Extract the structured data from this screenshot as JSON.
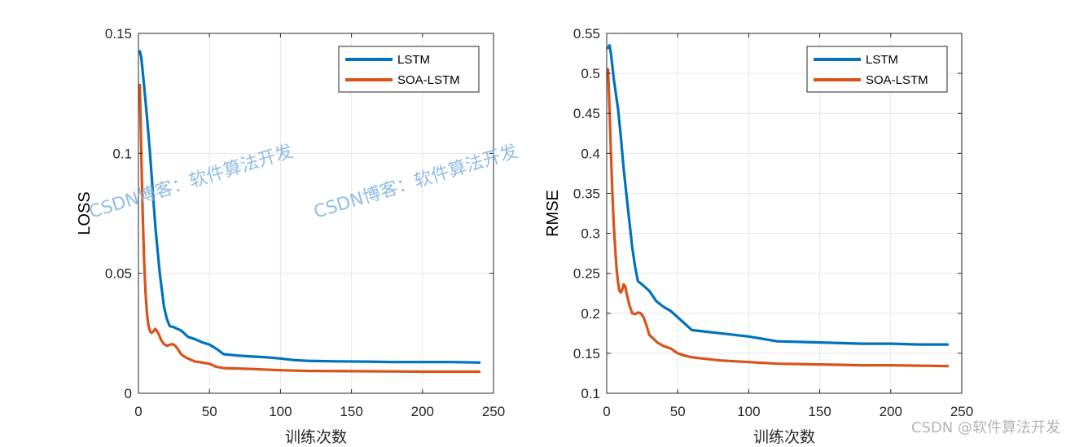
{
  "chart_data": [
    {
      "type": "line",
      "ylabel": "LOSS",
      "xlabel": "训练次数",
      "xlim": [
        0,
        250
      ],
      "ylim": [
        0,
        0.15
      ],
      "xticks": [
        0,
        50,
        100,
        150,
        200,
        250
      ],
      "xtick_labels": [
        "0",
        "50",
        "100",
        "150",
        "200",
        "250"
      ],
      "yticks": [
        0,
        0.05,
        0.1,
        0.15
      ],
      "ytick_labels": [
        "0",
        "0.05",
        "0.1",
        "0.15"
      ],
      "grid": true,
      "legend_position": "top-right",
      "series": [
        {
          "name": "LSTM",
          "color": "#0072bd",
          "x": [
            1,
            2,
            4,
            6,
            8,
            10,
            12,
            15,
            18,
            20,
            22,
            25,
            30,
            35,
            40,
            45,
            50,
            55,
            60,
            70,
            80,
            90,
            100,
            110,
            120,
            140,
            160,
            180,
            200,
            220,
            240
          ],
          "y": [
            0.1425,
            0.14,
            0.128,
            0.115,
            0.101,
            0.085,
            0.069,
            0.05,
            0.036,
            0.031,
            0.028,
            0.0275,
            0.0262,
            0.0235,
            0.0225,
            0.0212,
            0.0203,
            0.0185,
            0.0163,
            0.0157,
            0.0153,
            0.015,
            0.0145,
            0.0138,
            0.0135,
            0.0133,
            0.0132,
            0.013,
            0.013,
            0.013,
            0.0128
          ]
        },
        {
          "name": "SOA-LSTM",
          "color": "#d95319",
          "x": [
            1,
            2,
            3,
            4,
            5,
            6,
            7,
            8,
            9,
            10,
            12,
            14,
            16,
            18,
            20,
            22,
            24,
            26,
            28,
            30,
            33,
            36,
            40,
            45,
            50,
            55,
            60,
            70,
            80,
            100,
            120,
            150,
            180,
            200,
            240
          ],
          "y": [
            0.1285,
            0.1,
            0.075,
            0.055,
            0.042,
            0.033,
            0.0285,
            0.026,
            0.0252,
            0.0255,
            0.0268,
            0.025,
            0.0222,
            0.0205,
            0.0198,
            0.0202,
            0.0205,
            0.0198,
            0.0182,
            0.0163,
            0.015,
            0.0142,
            0.0132,
            0.0128,
            0.0123,
            0.011,
            0.0105,
            0.0103,
            0.0101,
            0.0096,
            0.0093,
            0.0092,
            0.0091,
            0.009,
            0.009
          ]
        }
      ]
    },
    {
      "type": "line",
      "ylabel": "RMSE",
      "xlabel": "训练次数",
      "xlim": [
        0,
        250
      ],
      "ylim": [
        0.1,
        0.55
      ],
      "xticks": [
        0,
        50,
        100,
        150,
        200,
        250
      ],
      "xtick_labels": [
        "0",
        "50",
        "100",
        "150",
        "200",
        "250"
      ],
      "yticks": [
        0.1,
        0.15,
        0.2,
        0.25,
        0.3,
        0.35,
        0.4,
        0.45,
        0.5,
        0.55
      ],
      "ytick_labels": [
        "0.1",
        "0.15",
        "0.2",
        "0.25",
        "0.3",
        "0.35",
        "0.4",
        "0.45",
        "0.5",
        "0.55"
      ],
      "grid": true,
      "legend_position": "top-right",
      "series": [
        {
          "name": "LSTM",
          "color": "#0072bd",
          "x": [
            1,
            2,
            3,
            5,
            8,
            10,
            12,
            15,
            18,
            20,
            22,
            25,
            30,
            35,
            40,
            45,
            50,
            55,
            60,
            70,
            80,
            90,
            100,
            110,
            120,
            140,
            160,
            180,
            200,
            220,
            240
          ],
          "y": [
            0.532,
            0.535,
            0.525,
            0.493,
            0.455,
            0.42,
            0.38,
            0.33,
            0.282,
            0.258,
            0.24,
            0.236,
            0.228,
            0.215,
            0.208,
            0.203,
            0.195,
            0.187,
            0.179,
            0.177,
            0.175,
            0.173,
            0.171,
            0.168,
            0.165,
            0.164,
            0.163,
            0.162,
            0.162,
            0.161,
            0.161
          ]
        },
        {
          "name": "SOA-LSTM",
          "color": "#d95319",
          "x": [
            1,
            2,
            3,
            4,
            5,
            6,
            7,
            8,
            9,
            10,
            11,
            12,
            13,
            14,
            16,
            18,
            20,
            22,
            24,
            26,
            28,
            30,
            33,
            36,
            40,
            45,
            50,
            55,
            60,
            70,
            80,
            100,
            120,
            150,
            180,
            200,
            240
          ],
          "y": [
            0.505,
            0.455,
            0.4,
            0.35,
            0.31,
            0.28,
            0.255,
            0.238,
            0.228,
            0.226,
            0.23,
            0.236,
            0.234,
            0.225,
            0.21,
            0.2,
            0.199,
            0.201,
            0.2,
            0.195,
            0.185,
            0.173,
            0.168,
            0.163,
            0.159,
            0.156,
            0.15,
            0.147,
            0.145,
            0.143,
            0.141,
            0.139,
            0.137,
            0.136,
            0.135,
            0.135,
            0.134
          ]
        }
      ]
    }
  ],
  "watermarks": [
    "CSDN博客：软件算法开发",
    "CSDN博客：软件算法开发"
  ],
  "credit": "CSDN @软件算法开发"
}
